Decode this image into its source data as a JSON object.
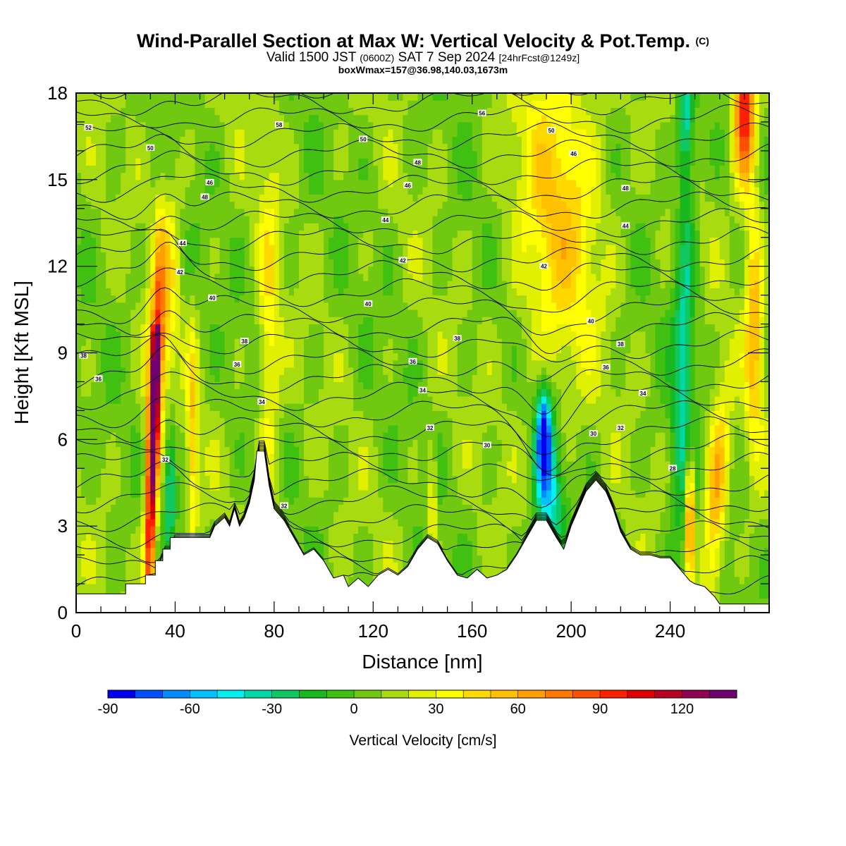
{
  "title": {
    "line1": "Wind-Parallel Section at Max W: Vertical Velocity & Pot.Temp.",
    "line1_mark": "(C)",
    "line2_a": "Valid 1500 JST",
    "line2_small1": "(0600Z)",
    "line2_b": "SAT 7 Sep 2024",
    "line2_small2": "[24hrFcst@1249z]",
    "line3": "boxWmax=157@36.98,140.03,1673m"
  },
  "chart_data": {
    "type": "heatmap",
    "xlabel": "Distance [nm]",
    "ylabel": "Height [Kft MSL]",
    "xlim": [
      0,
      280
    ],
    "ylim": [
      0,
      18
    ],
    "x_ticks": [
      0,
      40,
      80,
      120,
      160,
      200,
      240
    ],
    "y_ticks": [
      0,
      3,
      6,
      9,
      12,
      15,
      18
    ],
    "colorbar": {
      "title": "Vertical Velocity [cm/s]",
      "levels": [
        -90,
        -80,
        -70,
        -60,
        -50,
        -40,
        -30,
        -20,
        -10,
        0,
        10,
        20,
        30,
        40,
        50,
        60,
        70,
        80,
        90,
        100,
        110,
        120,
        130,
        140
      ],
      "colors": [
        "#0000f0",
        "#0050ff",
        "#008cff",
        "#00c0ff",
        "#00f0f0",
        "#00d8a8",
        "#10c860",
        "#18b820",
        "#40c010",
        "#70c810",
        "#a8dc10",
        "#e0f000",
        "#ffff00",
        "#ffd800",
        "#ffc000",
        "#ffa000",
        "#ff7800",
        "#ff5000",
        "#ff2000",
        "#e00000",
        "#b80020",
        "#900050",
        "#700070"
      ],
      "tick_labels": [
        -90,
        -60,
        -30,
        0,
        30,
        60,
        90,
        120
      ]
    },
    "terrain_kft": [
      [
        0,
        0.65
      ],
      [
        20,
        0.65
      ],
      [
        20,
        1.0
      ],
      [
        28,
        1.0
      ],
      [
        28,
        1.3
      ],
      [
        32,
        1.3
      ],
      [
        32,
        1.8
      ],
      [
        35,
        1.8
      ],
      [
        35,
        2.2
      ],
      [
        38,
        2.2
      ],
      [
        38,
        2.6
      ],
      [
        54,
        2.6
      ],
      [
        56,
        3.0
      ],
      [
        60,
        3.3
      ],
      [
        62,
        3.0
      ],
      [
        64,
        3.6
      ],
      [
        66,
        3.0
      ],
      [
        68,
        3.3
      ],
      [
        70,
        3.8
      ],
      [
        72,
        4.6
      ],
      [
        73,
        5.6
      ],
      [
        76,
        5.6
      ],
      [
        78,
        4.4
      ],
      [
        80,
        3.6
      ],
      [
        84,
        3.2
      ],
      [
        88,
        2.6
      ],
      [
        92,
        2.0
      ],
      [
        96,
        2.2
      ],
      [
        100,
        1.8
      ],
      [
        104,
        1.2
      ],
      [
        108,
        1.3
      ],
      [
        110,
        0.9
      ],
      [
        114,
        1.2
      ],
      [
        118,
        0.9
      ],
      [
        122,
        1.3
      ],
      [
        126,
        1.5
      ],
      [
        130,
        1.3
      ],
      [
        134,
        1.6
      ],
      [
        138,
        2.2
      ],
      [
        142,
        2.6
      ],
      [
        146,
        2.4
      ],
      [
        150,
        1.8
      ],
      [
        154,
        1.3
      ],
      [
        158,
        1.2
      ],
      [
        162,
        1.5
      ],
      [
        166,
        1.2
      ],
      [
        170,
        1.3
      ],
      [
        174,
        1.5
      ],
      [
        178,
        2.0
      ],
      [
        182,
        2.6
      ],
      [
        186,
        3.2
      ],
      [
        190,
        3.2
      ],
      [
        194,
        2.6
      ],
      [
        197,
        2.2
      ],
      [
        200,
        3.0
      ],
      [
        203,
        3.6
      ],
      [
        206,
        4.2
      ],
      [
        210,
        4.6
      ],
      [
        214,
        4.2
      ],
      [
        217,
        3.6
      ],
      [
        220,
        2.8
      ],
      [
        224,
        2.2
      ],
      [
        228,
        2.0
      ],
      [
        232,
        2.0
      ],
      [
        236,
        1.9
      ],
      [
        240,
        1.9
      ],
      [
        244,
        1.5
      ],
      [
        248,
        1.1
      ],
      [
        250,
        1.0
      ],
      [
        254,
        0.9
      ],
      [
        258,
        0.55
      ],
      [
        260,
        0.3
      ],
      [
        280,
        0.3
      ]
    ],
    "isentrope_labels": [
      {
        "x": 5,
        "y": 16.8,
        "t": "52"
      },
      {
        "x": 30,
        "y": 16.1,
        "t": "50"
      },
      {
        "x": 82,
        "y": 16.9,
        "t": "58"
      },
      {
        "x": 116,
        "y": 16.4,
        "t": "50"
      },
      {
        "x": 164,
        "y": 17.3,
        "t": "56"
      },
      {
        "x": 192,
        "y": 16.7,
        "t": "50"
      },
      {
        "x": 201,
        "y": 15.9,
        "t": "46"
      },
      {
        "x": 54,
        "y": 14.9,
        "t": "46"
      },
      {
        "x": 52,
        "y": 14.4,
        "t": "48"
      },
      {
        "x": 138,
        "y": 15.6,
        "t": "48"
      },
      {
        "x": 134,
        "y": 14.8,
        "t": "46"
      },
      {
        "x": 222,
        "y": 14.7,
        "t": "48"
      },
      {
        "x": 125,
        "y": 13.6,
        "t": "44"
      },
      {
        "x": 222,
        "y": 13.4,
        "t": "44"
      },
      {
        "x": 43,
        "y": 12.8,
        "t": "44"
      },
      {
        "x": 132,
        "y": 12.2,
        "t": "42"
      },
      {
        "x": 189,
        "y": 12.0,
        "t": "42"
      },
      {
        "x": 42,
        "y": 11.8,
        "t": "42"
      },
      {
        "x": 55,
        "y": 10.9,
        "t": "40"
      },
      {
        "x": 118,
        "y": 10.7,
        "t": "40"
      },
      {
        "x": 208,
        "y": 10.1,
        "t": "40"
      },
      {
        "x": 3,
        "y": 8.9,
        "t": "38"
      },
      {
        "x": 68,
        "y": 9.4,
        "t": "38"
      },
      {
        "x": 154,
        "y": 9.5,
        "t": "38"
      },
      {
        "x": 220,
        "y": 9.3,
        "t": "38"
      },
      {
        "x": 9,
        "y": 8.1,
        "t": "36"
      },
      {
        "x": 65,
        "y": 8.6,
        "t": "36"
      },
      {
        "x": 136,
        "y": 8.7,
        "t": "36"
      },
      {
        "x": 214,
        "y": 8.5,
        "t": "36"
      },
      {
        "x": 140,
        "y": 7.7,
        "t": "34"
      },
      {
        "x": 229,
        "y": 7.6,
        "t": "34"
      },
      {
        "x": 75,
        "y": 7.3,
        "t": "34"
      },
      {
        "x": 143,
        "y": 6.4,
        "t": "32"
      },
      {
        "x": 220,
        "y": 6.4,
        "t": "32"
      },
      {
        "x": 166,
        "y": 5.8,
        "t": "30"
      },
      {
        "x": 209,
        "y": 6.2,
        "t": "30"
      },
      {
        "x": 36,
        "y": 5.3,
        "t": "32"
      },
      {
        "x": 84,
        "y": 3.7,
        "t": "32"
      },
      {
        "x": 241,
        "y": 5.0,
        "t": "28"
      }
    ]
  }
}
